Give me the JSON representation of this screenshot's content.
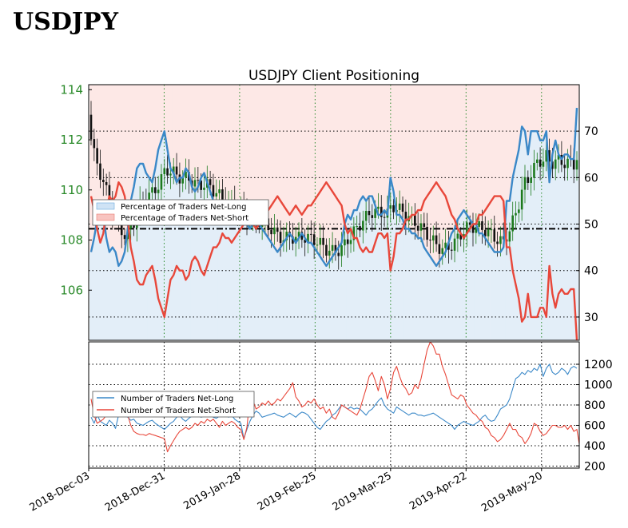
{
  "header": {
    "title": "USDJPY"
  },
  "chart_data": {
    "type": "line",
    "title": "USDJPY Client Positioning",
    "x_tick_labels": [
      "2018-Dec-03",
      "2018-Dec-31",
      "2019-Jan-28",
      "2019-Feb-25",
      "2019-Mar-25",
      "2019-Apr-22",
      "2019-May-20"
    ],
    "top_panel": {
      "price_axis": {
        "ticks": [
          "106",
          "108",
          "110",
          "112",
          "114"
        ],
        "ylim": [
          104,
          114.2
        ],
        "color": "#2a8a2a"
      },
      "percent_axis": {
        "ticks": [
          "30",
          "40",
          "50",
          "60",
          "70"
        ],
        "ylim": [
          25,
          80
        ]
      },
      "reference_line": 49,
      "legend": {
        "position": "center-left",
        "entries": [
          "Percentage of Traders Net-Long",
          "Percentage of Traders Net-Short"
        ]
      },
      "series": [
        {
          "name": "Percentage of Traders Net-Long",
          "color": "#3a88c8",
          "values": [
            44,
            47,
            51,
            54,
            52,
            47,
            44,
            45,
            44,
            41,
            42,
            44,
            49,
            55,
            58,
            62,
            63,
            63,
            61,
            60,
            59,
            62,
            66,
            68,
            70,
            66,
            62,
            61,
            59,
            60,
            60,
            62,
            61,
            58,
            57,
            58,
            60,
            61,
            59,
            57,
            55,
            55,
            54,
            52,
            53,
            53,
            54,
            53,
            52,
            51,
            50,
            50,
            49,
            50,
            51,
            50,
            49,
            48,
            47,
            46,
            45,
            44,
            45,
            46,
            47,
            48,
            47,
            46,
            47,
            48,
            47,
            46,
            46,
            45,
            44,
            43,
            42,
            41,
            42,
            43,
            44,
            45,
            46,
            50,
            52,
            51,
            53,
            53,
            55,
            56,
            55,
            56,
            56,
            54,
            52,
            52,
            53,
            52,
            60,
            57,
            52,
            52,
            51,
            49,
            49,
            48,
            48,
            47,
            47,
            45,
            44,
            43,
            42,
            41,
            42,
            43,
            44,
            46,
            48,
            49,
            51,
            52,
            53,
            52,
            51,
            50,
            50,
            48,
            48,
            47,
            46,
            45,
            44,
            44,
            44,
            45,
            55,
            55,
            60,
            63,
            66,
            71,
            70,
            65,
            70,
            70,
            70,
            68,
            68,
            70,
            59,
            65,
            68,
            65,
            64,
            65,
            65,
            64,
            64,
            75
          ]
        },
        {
          "name": "Percentage of Traders Net-Short",
          "color": "#e8473a",
          "values": [
            56,
            53,
            49,
            46,
            48,
            53,
            56,
            55,
            56,
            59,
            58,
            56,
            51,
            45,
            42,
            38,
            37,
            37,
            39,
            40,
            41,
            38,
            34,
            32,
            30,
            34,
            38,
            39,
            41,
            40,
            40,
            38,
            39,
            42,
            43,
            42,
            40,
            39,
            41,
            43,
            45,
            45,
            46,
            48,
            47,
            47,
            46,
            47,
            48,
            49,
            50,
            50,
            51,
            50,
            49,
            50,
            51,
            52,
            53,
            54,
            55,
            56,
            55,
            54,
            53,
            52,
            53,
            54,
            53,
            52,
            53,
            54,
            54,
            55,
            56,
            57,
            58,
            59,
            58,
            57,
            56,
            55,
            54,
            50,
            48,
            49,
            47,
            47,
            45,
            44,
            45,
            44,
            44,
            46,
            48,
            48,
            47,
            48,
            40,
            43,
            48,
            48,
            49,
            51,
            51,
            52,
            52,
            53,
            53,
            55,
            56,
            57,
            58,
            59,
            58,
            57,
            56,
            54,
            52,
            51,
            49,
            48,
            47,
            48,
            49,
            50,
            50,
            52,
            52,
            53,
            54,
            55,
            56,
            56,
            56,
            55,
            45,
            45,
            40,
            37,
            34,
            29,
            30,
            35,
            30,
            30,
            30,
            32,
            32,
            30,
            41,
            35,
            32,
            35,
            36,
            35,
            35,
            36,
            36,
            25
          ]
        }
      ]
    },
    "bottom_panel": {
      "axis": {
        "ticks": [
          "200",
          "400",
          "600",
          "800",
          "1000",
          "1200"
        ],
        "ylim": [
          180,
          1420
        ]
      },
      "legend": {
        "position": "upper-left",
        "entries": [
          "Number of Traders Net-Long",
          "Number of Traders Net-Short"
        ]
      },
      "series": [
        {
          "name": "Number of Traders Net-Long",
          "color": "#3a88c8",
          "values": [
            680,
            620,
            700,
            640,
            620,
            600,
            650,
            620,
            570,
            700,
            720,
            700,
            680,
            650,
            660,
            620,
            610,
            600,
            620,
            640,
            650,
            620,
            600,
            580,
            560,
            590,
            620,
            640,
            680,
            700,
            660,
            640,
            670,
            690,
            710,
            700,
            680,
            690,
            720,
            700,
            680,
            670,
            690,
            700,
            720,
            680,
            700,
            660,
            640,
            620,
            470,
            560,
            640,
            700,
            740,
            720,
            680,
            690,
            700,
            710,
            720,
            700,
            690,
            680,
            700,
            720,
            700,
            680,
            710,
            730,
            720,
            700,
            660,
            620,
            580,
            560,
            600,
            640,
            660,
            700,
            720,
            760,
            800,
            780,
            760,
            780,
            760,
            770,
            760,
            730,
            700,
            740,
            760,
            800,
            840,
            870,
            800,
            760,
            740,
            720,
            780,
            760,
            740,
            720,
            700,
            720,
            720,
            700,
            700,
            690,
            700,
            710,
            720,
            700,
            680,
            660,
            640,
            620,
            600,
            560,
            600,
            620,
            640,
            620,
            610,
            600,
            620,
            640,
            680,
            700,
            660,
            640,
            650,
            700,
            760,
            780,
            800,
            860,
            960,
            1060,
            1080,
            1120,
            1100,
            1140,
            1120,
            1160,
            1140,
            1200,
            1080,
            1160,
            1200,
            1120,
            1100,
            1120,
            1160,
            1140,
            1100,
            1160,
            1180,
            1160
          ]
        },
        {
          "name": "Number of Traders Net-Short",
          "color": "#e8473a",
          "values": [
            860,
            700,
            620,
            640,
            660,
            700,
            720,
            800,
            740,
            900,
            860,
            840,
            700,
            600,
            540,
            520,
            510,
            510,
            500,
            520,
            510,
            500,
            490,
            480,
            470,
            340,
            400,
            450,
            500,
            540,
            560,
            580,
            560,
            580,
            620,
            600,
            640,
            620,
            660,
            640,
            660,
            620,
            580,
            640,
            600,
            620,
            640,
            620,
            580,
            560,
            460,
            580,
            860,
            840,
            760,
            780,
            820,
            800,
            840,
            800,
            820,
            860,
            840,
            880,
            920,
            960,
            1020,
            880,
            840,
            780,
            800,
            840,
            820,
            860,
            800,
            760,
            780,
            720,
            760,
            680,
            660,
            720,
            800,
            780,
            760,
            740,
            720,
            700,
            760,
            860,
            960,
            1080,
            1120,
            1040,
            940,
            1080,
            1000,
            860,
            960,
            1120,
            1180,
            1080,
            1000,
            960,
            900,
            920,
            1000,
            960,
            1060,
            1200,
            1340,
            1420,
            1380,
            1300,
            1300,
            1180,
            1100,
            1000,
            900,
            880,
            860,
            900,
            880,
            800,
            760,
            720,
            700,
            660,
            640,
            580,
            560,
            500,
            480,
            440,
            460,
            500,
            560,
            620,
            560,
            560,
            500,
            480,
            420,
            460,
            520,
            620,
            600,
            540,
            500,
            520,
            560,
            600,
            600,
            580,
            580,
            600,
            560,
            600,
            540,
            560,
            380
          ]
        }
      ]
    }
  }
}
